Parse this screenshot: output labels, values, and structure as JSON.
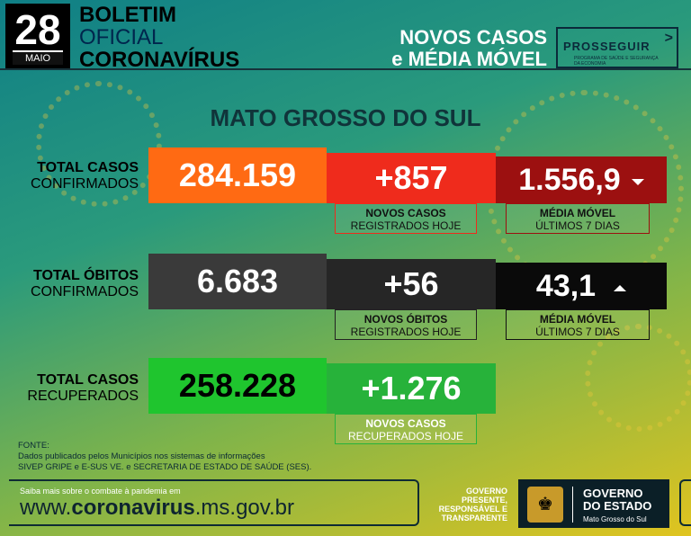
{
  "header": {
    "day": "28",
    "month": "MAIO",
    "title_l1": "BOLETIM",
    "title_l2": "OFICIAL",
    "title_l3": "CORONAVÍRUS",
    "novos_a": "NOVOS CASOS",
    "novos_b": "e MÉDIA MÓVEL",
    "prosseguir": "PROSSEGUIR",
    "prosseguir_sub": "PROGRAMA DE SAÚDE E SEGURANÇA DA ECONOMIA"
  },
  "state": "MATO GROSSO DO SUL",
  "rows": {
    "cases": {
      "label_bold": "TOTAL CASOS",
      "label_normal": "CONFIRMADOS",
      "total": "284.159",
      "new": "+857",
      "new_sub_b": "NOVOS CASOS",
      "new_sub_n": "REGISTRADOS HOJE",
      "avg": "1.556,9",
      "avg_sub_b": "MÉDIA MÓVEL",
      "avg_sub_n": "ÚLTIMOS 7 DIAS",
      "avg_trend": "down"
    },
    "deaths": {
      "label_bold": "TOTAL ÓBITOS",
      "label_normal": "CONFIRMADOS",
      "total": "6.683",
      "new": "+56",
      "new_sub_b": "NOVOS ÓBITOS",
      "new_sub_n": "REGISTRADOS HOJE",
      "avg": "43,1",
      "avg_sub_b": "MÉDIA MÓVEL",
      "avg_sub_n": "ÚLTIMOS 7 DIAS",
      "avg_trend": "up"
    },
    "recovered": {
      "label_bold": "TOTAL CASOS",
      "label_normal": "RECUPERADOS",
      "total": "258.228",
      "new": "+1.276",
      "new_sub_b": "NOVOS CASOS",
      "new_sub_n": "RECUPERADOS HOJE"
    }
  },
  "colors": {
    "orange": "#ff6a13",
    "red": "#ef2b1c",
    "darkred": "#9c1010",
    "gray": "#3a3a3a",
    "darkgray": "#262626",
    "black": "#0a0a0a",
    "green": "#1fc52e",
    "green2": "#27b23a"
  },
  "footer": {
    "fonte_title": "FONTE:",
    "fonte_l1": "Dados publicados pelos Municípios nos sistemas de informações",
    "fonte_l2": "SIVEP GRIPE e E-SUS VE. e SECRETARIA DE ESTADO DE SAÚDE (SES).",
    "saiba": "Saiba mais sobre o combate à pandemia em",
    "url_pre": "www.",
    "url_bold": "coronavirus",
    "url_post": ".ms.gov.br",
    "gov_l1": "GOVERNO",
    "gov_l2": "PRESENTE,",
    "gov_l3": "RESPONSÁVEL E",
    "gov_l4": "TRANSPARENTE",
    "gov_t1": "GOVERNO",
    "gov_t2": "DO ESTADO",
    "gov_t3": "Mato Grosso do Sul",
    "crest_icon": "state-crest-icon"
  }
}
